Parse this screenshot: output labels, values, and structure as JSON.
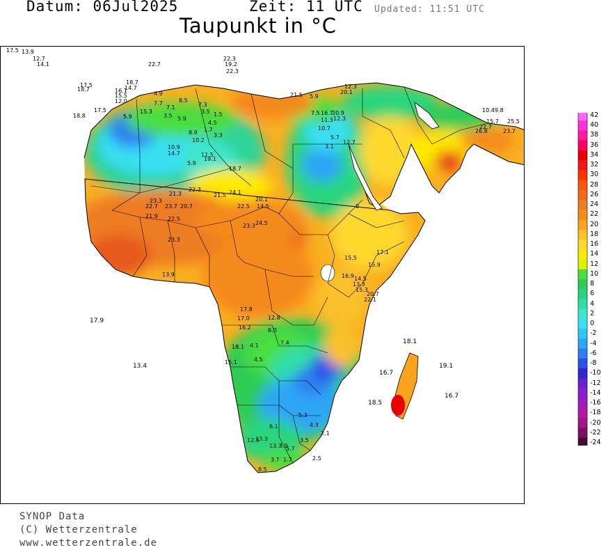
{
  "header": {
    "date": "Datum: 06Jul2025",
    "time": "Zeit: 11 UTC",
    "updated": "Updated: 11:51 UTC",
    "title": "Taupunkt in °C"
  },
  "legend": {
    "labels": [
      "42",
      "40",
      "38",
      "36",
      "34",
      "32",
      "30",
      "28",
      "26",
      "24",
      "22",
      "20",
      "18",
      "16",
      "14",
      "12",
      "10",
      "8",
      "6",
      "4",
      "2",
      "0",
      "-2",
      "-4",
      "-6",
      "-8",
      "-10",
      "-12",
      "-14",
      "-16",
      "-18",
      "-20",
      "-22",
      "-24"
    ],
    "colors": [
      "#ff66ff",
      "#ff33dd",
      "#ff1aa0",
      "#ff0066",
      "#e60000",
      "#f01818",
      "#ff3300",
      "#ff5511",
      "#f26a1b",
      "#ee7c22",
      "#f58a1f",
      "#f9a21b",
      "#fbc02a",
      "#ffd82f",
      "#ffe800",
      "#ddf000",
      "#4ade3e",
      "#2ecc54",
      "#2bd57e",
      "#33ddaa",
      "#3ee6cc",
      "#39dff2",
      "#2ec8f6",
      "#2da6f5",
      "#2f7ff0",
      "#2b52e8",
      "#3325d6",
      "#6422d0",
      "#8a1ecc",
      "#a01cb8",
      "#b4199f",
      "#a21584",
      "#7a1062",
      "#4a0838"
    ]
  },
  "stations": [
    {
      "t": "17.5"
    },
    {
      "t": "13.9"
    },
    {
      "t": "12.7"
    },
    {
      "t": "14.1"
    },
    {
      "t": "17.5"
    },
    {
      "t": "18.7"
    },
    {
      "t": "18.7"
    },
    {
      "t": "14.7"
    },
    {
      "t": "16.1"
    },
    {
      "t": "15.5"
    },
    {
      "t": "12.0"
    },
    {
      "t": "17.5"
    },
    {
      "t": "18.8"
    },
    {
      "t": "5.9"
    },
    {
      "t": "4.9"
    },
    {
      "t": "7.7"
    },
    {
      "t": "7.1"
    },
    {
      "t": "3.5"
    },
    {
      "t": "5.9"
    },
    {
      "t": "8.5"
    },
    {
      "t": "7.3"
    },
    {
      "t": "3.5"
    },
    {
      "t": "1.5"
    },
    {
      "t": "4.5"
    },
    {
      "t": "1.7"
    },
    {
      "t": "8.9"
    },
    {
      "t": "10.2"
    },
    {
      "t": "3.3"
    },
    {
      "t": "10.9"
    },
    {
      "t": "14.7"
    },
    {
      "t": "11.5"
    },
    {
      "t": "5.9"
    },
    {
      "t": "19.1"
    },
    {
      "t": "18.7"
    },
    {
      "t": "21.3"
    },
    {
      "t": "22.3"
    },
    {
      "t": "23.3"
    },
    {
      "t": "22.7"
    },
    {
      "t": "23.7"
    },
    {
      "t": "20.7"
    },
    {
      "t": "21.5"
    },
    {
      "t": "24.1"
    },
    {
      "t": "20.1"
    },
    {
      "t": "14.5"
    },
    {
      "t": "22.5"
    },
    {
      "t": "22.5"
    },
    {
      "t": "21.9"
    },
    {
      "t": "24.5"
    },
    {
      "t": "23.3"
    },
    {
      "t": "23.3"
    },
    {
      "t": "22.3"
    },
    {
      "t": "15.3"
    },
    {
      "t": "13.9"
    },
    {
      "t": "17.9"
    },
    {
      "t": "13.4"
    },
    {
      "t": "17.8"
    },
    {
      "t": "17.0"
    },
    {
      "t": "16.2"
    },
    {
      "t": "12.8"
    },
    {
      "t": "6.0"
    },
    {
      "t": "7.4"
    },
    {
      "t": "18.1"
    },
    {
      "t": "4.1"
    },
    {
      "t": "4.5"
    },
    {
      "t": "15.1"
    },
    {
      "t": "21.5"
    },
    {
      "t": "5.9"
    },
    {
      "t": "7.5"
    },
    {
      "t": "16.7"
    },
    {
      "t": "20.9"
    },
    {
      "t": "11.3"
    },
    {
      "t": "12.3"
    },
    {
      "t": "10.7"
    },
    {
      "t": "5.7"
    },
    {
      "t": "3.1"
    },
    {
      "t": "12.7"
    },
    {
      "t": "20.1"
    },
    {
      "t": "12.3"
    },
    {
      "t": "0"
    },
    {
      "t": "17.1"
    },
    {
      "t": "15.5"
    },
    {
      "t": "15.9"
    },
    {
      "t": "16.9"
    },
    {
      "t": "14.5"
    },
    {
      "t": "13.3"
    },
    {
      "t": "15.3"
    },
    {
      "t": "20.7"
    },
    {
      "t": "22.1"
    },
    {
      "t": "18.1"
    },
    {
      "t": "19.1"
    },
    {
      "t": "16.7"
    },
    {
      "t": "18.5"
    },
    {
      "t": "16.7"
    },
    {
      "t": "22.3"
    },
    {
      "t": "19.2"
    },
    {
      "t": "22.7"
    },
    {
      "t": "15.7"
    },
    {
      "t": "10.4"
    },
    {
      "t": "9.8"
    },
    {
      "t": "22.7"
    },
    {
      "t": "26.8"
    },
    {
      "t": "25.5"
    },
    {
      "t": "23.7"
    },
    {
      "t": "13.3"
    },
    {
      "t": "12.5"
    },
    {
      "t": "13.7"
    },
    {
      "t": "3.9"
    },
    {
      "t": "5.7"
    },
    {
      "t": "1.7"
    },
    {
      "t": "3.7"
    },
    {
      "t": "2.5"
    },
    {
      "t": "8.5"
    },
    {
      "t": "6.1"
    },
    {
      "t": "5.3"
    },
    {
      "t": "4.3"
    },
    {
      "t": "2.1"
    },
    {
      "t": "3.5"
    },
    {
      "t": "5.1"
    }
  ],
  "footer": {
    "line1": "SYNOP Data",
    "line2": "(C) Wetterzentrale",
    "line3": "www.wetterzentrale.de"
  }
}
